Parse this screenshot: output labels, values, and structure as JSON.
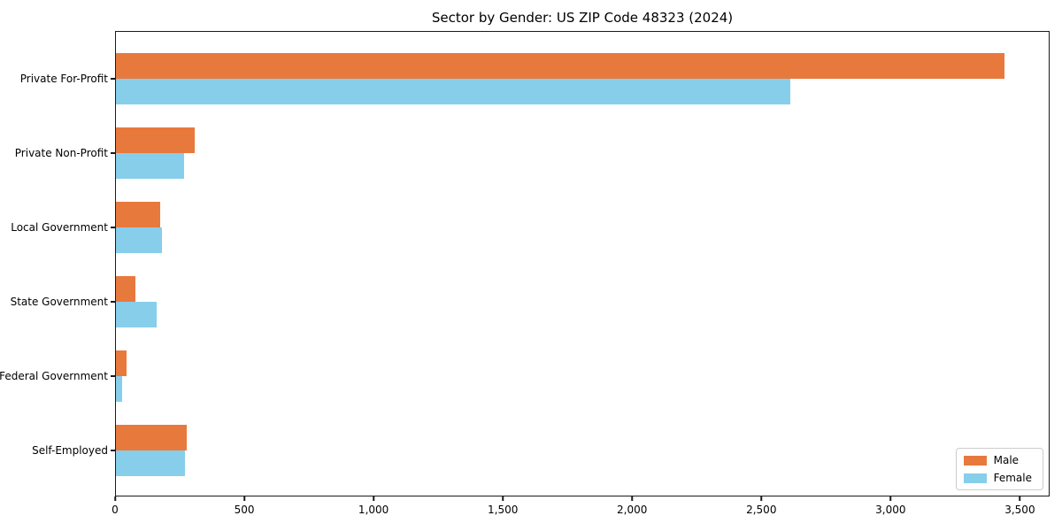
{
  "figure": {
    "background": "#ffffff",
    "axis_color": "#1a1a1a"
  },
  "chart_data": {
    "type": "bar",
    "orientation": "horizontal",
    "title": "Sector by Gender: US ZIP Code 48323 (2024)",
    "xlabel": "",
    "ylabel": "",
    "grid": false,
    "categories": [
      "Private For-Profit",
      "Private Non-Profit",
      "Local Government",
      "State Government",
      "Federal Government",
      "Self-Employed"
    ],
    "series": [
      {
        "name": "Male",
        "color": "#e8793d",
        "values": [
          3444,
          305,
          172,
          74,
          41,
          275
        ]
      },
      {
        "name": "Female",
        "color": "#87ceeb",
        "values": [
          2613,
          264,
          177,
          158,
          24,
          269
        ]
      }
    ],
    "xlim": [
      0,
      3615
    ],
    "x_ticks": [
      0,
      500,
      1000,
      1500,
      2000,
      2500,
      3000,
      3500
    ],
    "x_tick_labels": [
      "0",
      "500",
      "1,000",
      "1,500",
      "2,000",
      "2,500",
      "3,000",
      "3,500"
    ],
    "legend": {
      "position": "lower right",
      "entries": [
        "Male",
        "Female"
      ]
    }
  }
}
